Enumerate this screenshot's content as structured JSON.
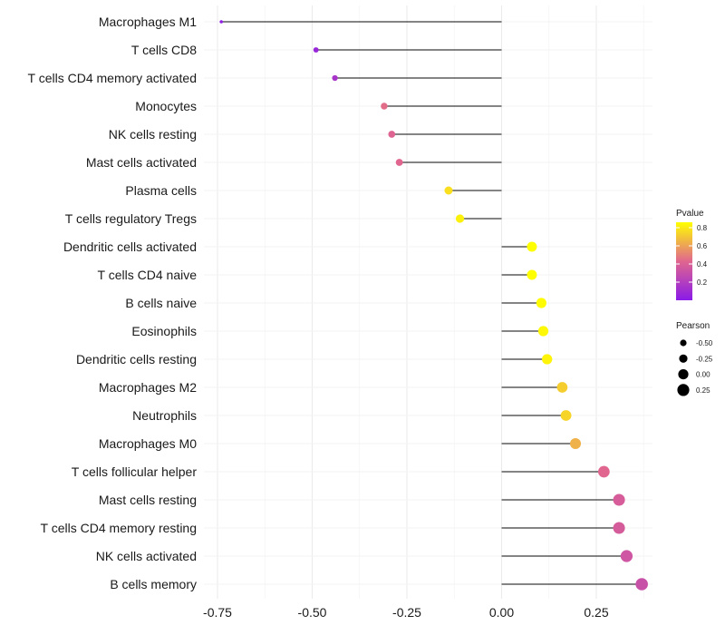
{
  "chart_data": {
    "type": "lollipop",
    "categories": [
      "Macrophages M1",
      "T cells CD8",
      "T cells CD4 memory activated",
      "Monocytes",
      "NK cells resting",
      "Mast cells activated",
      "Plasma cells",
      "T cells regulatory  Tregs ",
      "Dendritic cells activated",
      "T cells CD4 naive",
      "B cells naive",
      "Eosinophils",
      "Dendritic cells resting",
      "Macrophages M2",
      "Neutrophils",
      "Macrophages M0",
      "T cells follicular helper",
      "Mast cells resting",
      "T cells CD4 memory resting",
      "NK cells activated",
      "B cells memory"
    ],
    "pearson": [
      -0.74,
      -0.49,
      -0.44,
      -0.31,
      -0.29,
      -0.27,
      -0.14,
      -0.11,
      0.08,
      0.08,
      0.105,
      0.11,
      0.12,
      0.16,
      0.17,
      0.195,
      0.27,
      0.31,
      0.31,
      0.33,
      0.37
    ],
    "pvalue": [
      0.02,
      0.07,
      0.15,
      0.45,
      0.42,
      0.43,
      0.77,
      0.82,
      0.86,
      0.86,
      0.85,
      0.84,
      0.83,
      0.72,
      0.74,
      0.64,
      0.43,
      0.38,
      0.37,
      0.34,
      0.31
    ],
    "xlim": [
      -0.78,
      0.37
    ],
    "xticks": [
      -0.75,
      -0.5,
      -0.25,
      0.0,
      0.25
    ],
    "xtick_labels": [
      "-0.75",
      "-0.50",
      "-0.25",
      "0.00",
      "0.25"
    ],
    "xlabel": "",
    "ylabel": "",
    "grid": true,
    "color_legend": {
      "title": "Pvalue",
      "range": [
        0.0,
        0.86
      ],
      "ticks": [
        0.2,
        0.4,
        0.6,
        0.8
      ],
      "tick_labels": [
        "0.2",
        "0.4",
        "0.6",
        "0.8"
      ],
      "colors": [
        "#8a1be8",
        "#e0668f",
        "#ffff00"
      ],
      "placement": "right"
    },
    "size_legend": {
      "title": "Pearson",
      "values": [
        -0.5,
        -0.25,
        0.0,
        0.25
      ],
      "labels": [
        "-0.50",
        "-0.25",
        "0.00",
        "0.25"
      ],
      "placement": "right"
    }
  }
}
